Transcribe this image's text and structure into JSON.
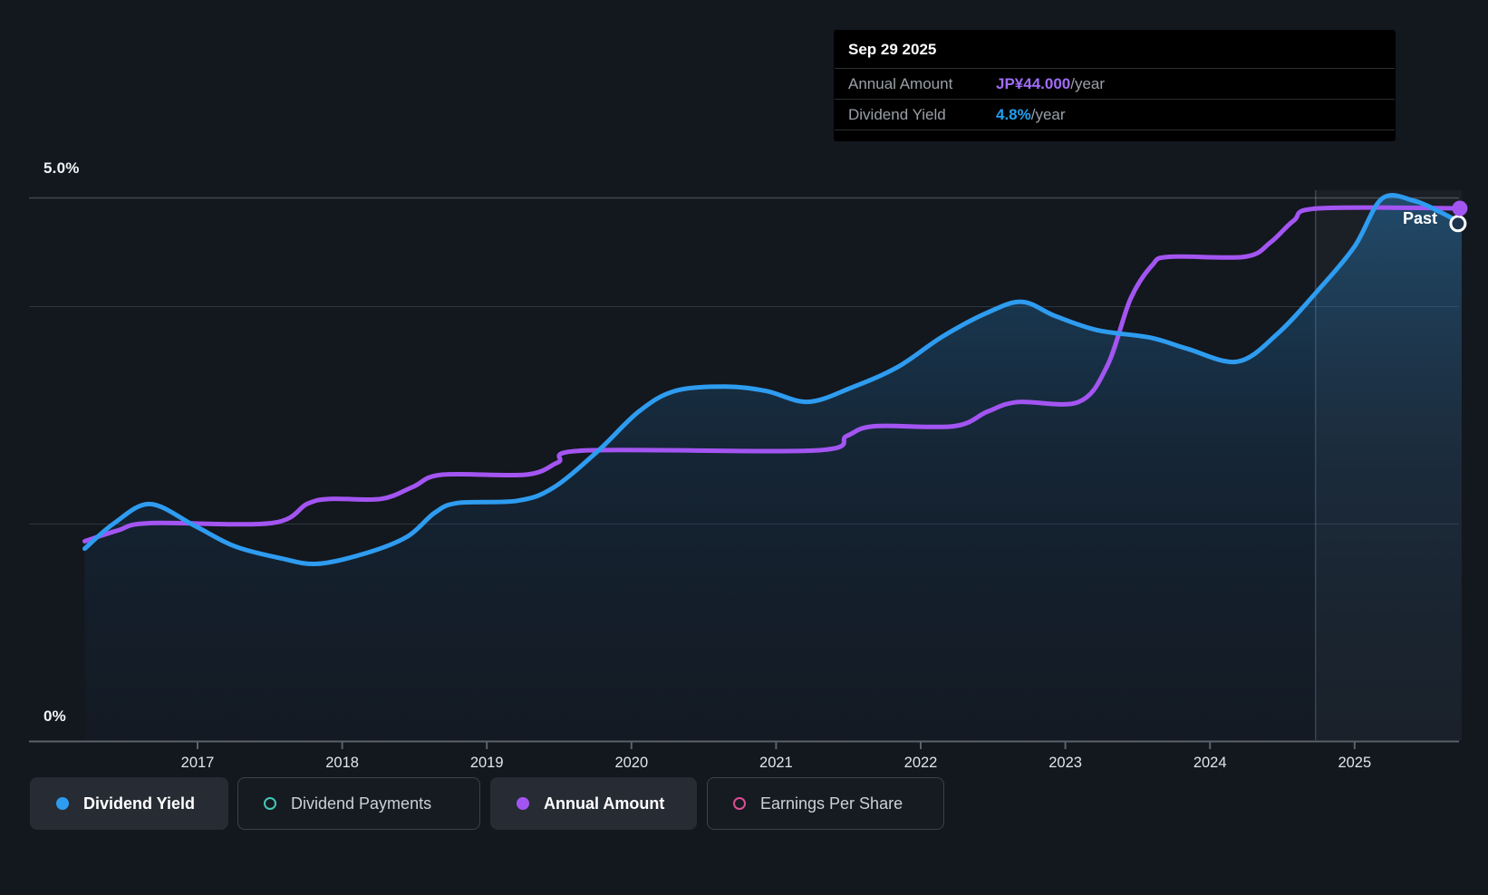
{
  "tooltip": {
    "date": "Sep 29 2025",
    "rows": [
      {
        "label": "Annual Amount",
        "value": "JP¥44.000",
        "suffix": "/year",
        "color": "#a06df8"
      },
      {
        "label": "Dividend Yield",
        "value": "4.8%",
        "suffix": "/year",
        "color": "#22a0f0"
      }
    ]
  },
  "y_axis": {
    "top_label": "5.0%",
    "bottom_label": "0%"
  },
  "x_axis": {
    "years": [
      "2017",
      "2018",
      "2019",
      "2020",
      "2021",
      "2022",
      "2023",
      "2024",
      "2025"
    ]
  },
  "past_label": "Past",
  "legend": {
    "items": [
      {
        "label": "Dividend Yield",
        "color": "#2e9cf0",
        "filled": true,
        "active": true
      },
      {
        "label": "Dividend Payments",
        "color": "#43c8b7",
        "filled": false,
        "active": false
      },
      {
        "label": "Annual Amount",
        "color": "#a355f2",
        "filled": true,
        "active": true
      },
      {
        "label": "Earnings Per Share",
        "color": "#dd4f93",
        "filled": false,
        "active": false
      }
    ]
  },
  "chart_data": {
    "type": "line",
    "title": "",
    "x_range": [
      2016.22,
      2025.74
    ],
    "past_divider_t": 2024.73,
    "today_t": 2025.74,
    "y_percent": {
      "min": 0,
      "max": 5,
      "gridline_pcts": [
        5.0,
        4.0,
        2.0
      ],
      "baseline_pct": 0
    },
    "y_amount": {
      "min": 0,
      "anchor_value": 44
    },
    "series": [
      {
        "name": "Dividend Yield",
        "unit": "%",
        "axis": "percent",
        "color": "#2e9cf0",
        "end_marker": {
          "t": 2025.74,
          "v": 4.76,
          "style": "white-ring"
        },
        "points": [
          [
            2016.22,
            1.77
          ],
          [
            2016.42,
            2.0
          ],
          [
            2016.67,
            2.18
          ],
          [
            2016.98,
            1.98
          ],
          [
            2017.26,
            1.79
          ],
          [
            2017.58,
            1.68
          ],
          [
            2017.83,
            1.63
          ],
          [
            2018.17,
            1.73
          ],
          [
            2018.45,
            1.88
          ],
          [
            2018.64,
            2.1
          ],
          [
            2018.8,
            2.19
          ],
          [
            2019.21,
            2.21
          ],
          [
            2019.46,
            2.33
          ],
          [
            2019.77,
            2.67
          ],
          [
            2020.05,
            3.03
          ],
          [
            2020.3,
            3.22
          ],
          [
            2020.65,
            3.26
          ],
          [
            2020.93,
            3.22
          ],
          [
            2021.22,
            3.12
          ],
          [
            2021.52,
            3.25
          ],
          [
            2021.84,
            3.44
          ],
          [
            2022.15,
            3.72
          ],
          [
            2022.46,
            3.94
          ],
          [
            2022.7,
            4.04
          ],
          [
            2022.93,
            3.91
          ],
          [
            2023.22,
            3.78
          ],
          [
            2023.59,
            3.71
          ],
          [
            2023.84,
            3.61
          ],
          [
            2024.19,
            3.49
          ],
          [
            2024.47,
            3.75
          ],
          [
            2024.75,
            4.15
          ],
          [
            2025.0,
            4.55
          ],
          [
            2025.19,
            4.99
          ],
          [
            2025.41,
            4.97
          ],
          [
            2025.6,
            4.86
          ],
          [
            2025.74,
            4.76
          ]
        ]
      },
      {
        "name": "Annual Amount",
        "unit": "JP¥",
        "axis": "amount",
        "color": "#a355f2",
        "end_marker": {
          "t": 2025.74,
          "v": 44,
          "style": "solid"
        },
        "points": [
          [
            2016.22,
            16.5
          ],
          [
            2016.45,
            17.4
          ],
          [
            2016.67,
            18.0
          ],
          [
            2017.51,
            18.0
          ],
          [
            2017.76,
            19.6
          ],
          [
            2017.92,
            20.0
          ],
          [
            2018.27,
            20.0
          ],
          [
            2018.49,
            21.0
          ],
          [
            2018.69,
            22.0
          ],
          [
            2019.27,
            22.0
          ],
          [
            2019.49,
            23.0
          ],
          [
            2019.68,
            24.0
          ],
          [
            2021.27,
            24.0
          ],
          [
            2021.49,
            25.2
          ],
          [
            2021.68,
            26.0
          ],
          [
            2022.23,
            26.0
          ],
          [
            2022.46,
            27.2
          ],
          [
            2022.67,
            28.0
          ],
          [
            2023.09,
            28.0
          ],
          [
            2023.29,
            31.0
          ],
          [
            2023.45,
            36.5
          ],
          [
            2023.6,
            39.3
          ],
          [
            2023.72,
            40.0
          ],
          [
            2024.24,
            40.0
          ],
          [
            2024.42,
            41.2
          ],
          [
            2024.58,
            43.0
          ],
          [
            2024.75,
            44.0
          ],
          [
            2025.74,
            44.0
          ]
        ]
      }
    ],
    "legend_position": "bottom",
    "grid": true
  }
}
